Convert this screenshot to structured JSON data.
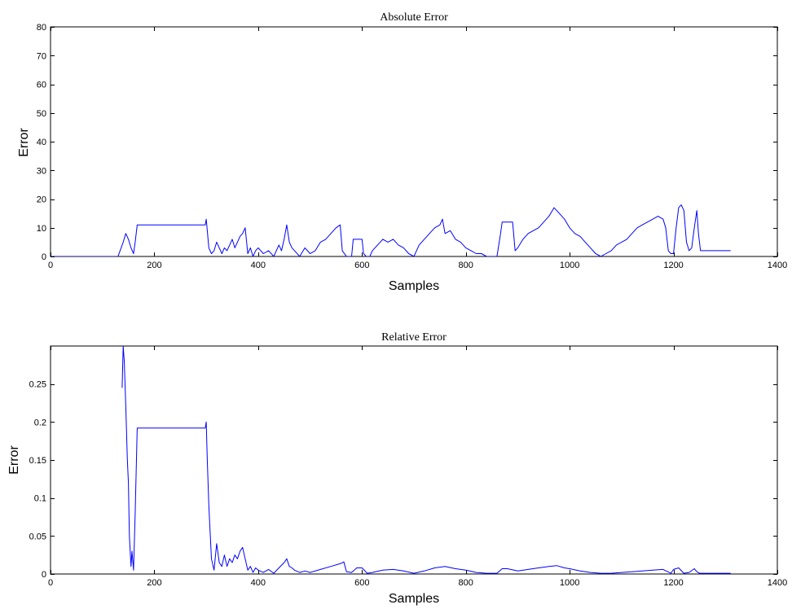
{
  "chart_data": [
    {
      "type": "line",
      "title": "Absolute Error",
      "xlabel": "Samples",
      "ylabel": "Error",
      "xlim": [
        0,
        1400
      ],
      "ylim": [
        0,
        80
      ],
      "xticks": [
        0,
        200,
        400,
        600,
        800,
        1000,
        1200,
        1400
      ],
      "yticks": [
        0,
        10,
        20,
        30,
        40,
        50,
        60,
        70,
        80
      ],
      "grid": false,
      "color": "#0000ff",
      "series": [
        {
          "x": [
            0,
            130,
            140,
            145,
            150,
            155,
            160,
            163,
            167,
            200,
            250,
            298,
            300,
            302,
            305,
            310,
            315,
            320,
            325,
            330,
            335,
            340,
            345,
            350,
            355,
            360,
            365,
            370,
            375,
            380,
            385,
            390,
            395,
            400,
            410,
            420,
            430,
            440,
            445,
            450,
            455,
            460,
            465,
            470,
            480,
            490,
            500,
            510,
            520,
            530,
            540,
            550,
            558,
            562,
            570,
            580,
            583,
            590,
            595,
            600,
            603,
            608,
            615,
            620,
            630,
            640,
            650,
            660,
            670,
            680,
            690,
            700,
            705,
            710,
            720,
            730,
            740,
            750,
            755,
            760,
            770,
            780,
            790,
            800,
            810,
            820,
            830,
            840,
            850,
            860,
            866,
            870,
            880,
            890,
            895,
            900,
            910,
            920,
            930,
            940,
            950,
            960,
            970,
            980,
            990,
            1000,
            1010,
            1020,
            1030,
            1040,
            1050,
            1060,
            1070,
            1080,
            1090,
            1100,
            1110,
            1120,
            1130,
            1140,
            1150,
            1160,
            1170,
            1180,
            1185,
            1190,
            1195,
            1200,
            1205,
            1210,
            1215,
            1220,
            1225,
            1230,
            1235,
            1240,
            1245,
            1248,
            1252,
            1256,
            1260,
            1310
          ],
          "y": [
            0,
            0,
            5,
            8,
            6,
            3,
            1,
            5,
            11,
            11,
            11,
            11,
            13,
            9,
            3,
            1,
            2,
            5,
            3,
            1,
            3,
            2,
            4,
            6,
            3,
            5,
            7,
            8,
            10,
            1,
            3,
            0,
            2,
            3,
            1,
            2,
            0,
            4,
            2,
            6,
            11,
            5,
            3,
            2,
            0,
            3,
            1,
            2,
            5,
            6,
            8,
            10,
            11,
            2,
            0,
            0,
            6,
            6,
            6,
            6,
            1,
            0,
            0,
            2,
            4,
            6,
            5,
            6,
            4,
            3,
            1,
            0,
            2,
            4,
            6,
            8,
            10,
            11,
            13,
            8,
            9,
            6,
            5,
            3,
            2,
            1,
            1,
            0,
            0,
            0,
            7,
            12,
            12,
            12,
            2,
            3,
            6,
            8,
            9,
            10,
            12,
            14,
            17,
            15,
            13,
            10,
            8,
            7,
            5,
            3,
            1,
            0,
            1,
            2,
            4,
            5,
            6,
            8,
            10,
            11,
            12,
            13,
            14,
            13,
            10,
            2,
            1,
            1,
            10,
            17,
            18,
            16,
            5,
            2,
            3,
            10,
            16,
            8,
            2,
            2,
            2,
            2
          ]
        }
      ]
    },
    {
      "type": "line",
      "title": "Relative Error",
      "xlabel": "Samples",
      "ylabel": "Error",
      "xlim": [
        0,
        1400
      ],
      "ylim": [
        0,
        0.3
      ],
      "xticks": [
        0,
        200,
        400,
        600,
        800,
        1000,
        1200,
        1400
      ],
      "yticks": [
        0,
        0.05,
        0.1,
        0.15,
        0.2,
        0.25
      ],
      "grid": false,
      "color": "#0000ff",
      "series": [
        {
          "x": [
            138,
            140,
            142,
            145,
            148,
            150,
            152,
            155,
            157,
            160,
            163,
            167,
            200,
            250,
            298,
            300,
            302,
            305,
            310,
            315,
            320,
            325,
            330,
            335,
            340,
            345,
            350,
            355,
            360,
            365,
            370,
            375,
            380,
            385,
            390,
            395,
            400,
            410,
            420,
            430,
            440,
            450,
            455,
            460,
            465,
            470,
            480,
            490,
            500,
            520,
            540,
            560,
            565,
            570,
            580,
            590,
            600,
            610,
            620,
            640,
            660,
            680,
            700,
            720,
            740,
            760,
            780,
            800,
            820,
            840,
            860,
            870,
            880,
            900,
            920,
            940,
            960,
            975,
            990,
            1000,
            1020,
            1040,
            1060,
            1080,
            1100,
            1120,
            1140,
            1160,
            1180,
            1195,
            1200,
            1210,
            1220,
            1230,
            1240,
            1245,
            1250,
            1260,
            1310
          ],
          "y": [
            0.245,
            0.3,
            0.28,
            0.22,
            0.15,
            0.12,
            0.05,
            0.01,
            0.03,
            0.005,
            0.08,
            0.192,
            0.192,
            0.192,
            0.192,
            0.2,
            0.15,
            0.09,
            0.02,
            0.005,
            0.04,
            0.015,
            0.01,
            0.025,
            0.01,
            0.02,
            0.015,
            0.025,
            0.02,
            0.03,
            0.035,
            0.02,
            0.005,
            0.01,
            0.002,
            0.008,
            0.005,
            0.002,
            0.006,
            0.001,
            0.008,
            0.015,
            0.02,
            0.01,
            0.008,
            0.005,
            0.002,
            0.004,
            0.002,
            0.006,
            0.01,
            0.014,
            0.016,
            0.003,
            0.002,
            0.008,
            0.008,
            0.001,
            0.002,
            0.005,
            0.006,
            0.004,
            0.001,
            0.004,
            0.008,
            0.01,
            0.007,
            0.005,
            0.002,
            0.001,
            0.001,
            0.007,
            0.007,
            0.004,
            0.006,
            0.008,
            0.01,
            0.011,
            0.008,
            0.007,
            0.004,
            0.002,
            0.001,
            0.001,
            0.002,
            0.003,
            0.004,
            0.005,
            0.006,
            0.001,
            0.006,
            0.008,
            0.001,
            0.002,
            0.007,
            0.003,
            0.001,
            0.001,
            0.001
          ]
        }
      ]
    }
  ]
}
